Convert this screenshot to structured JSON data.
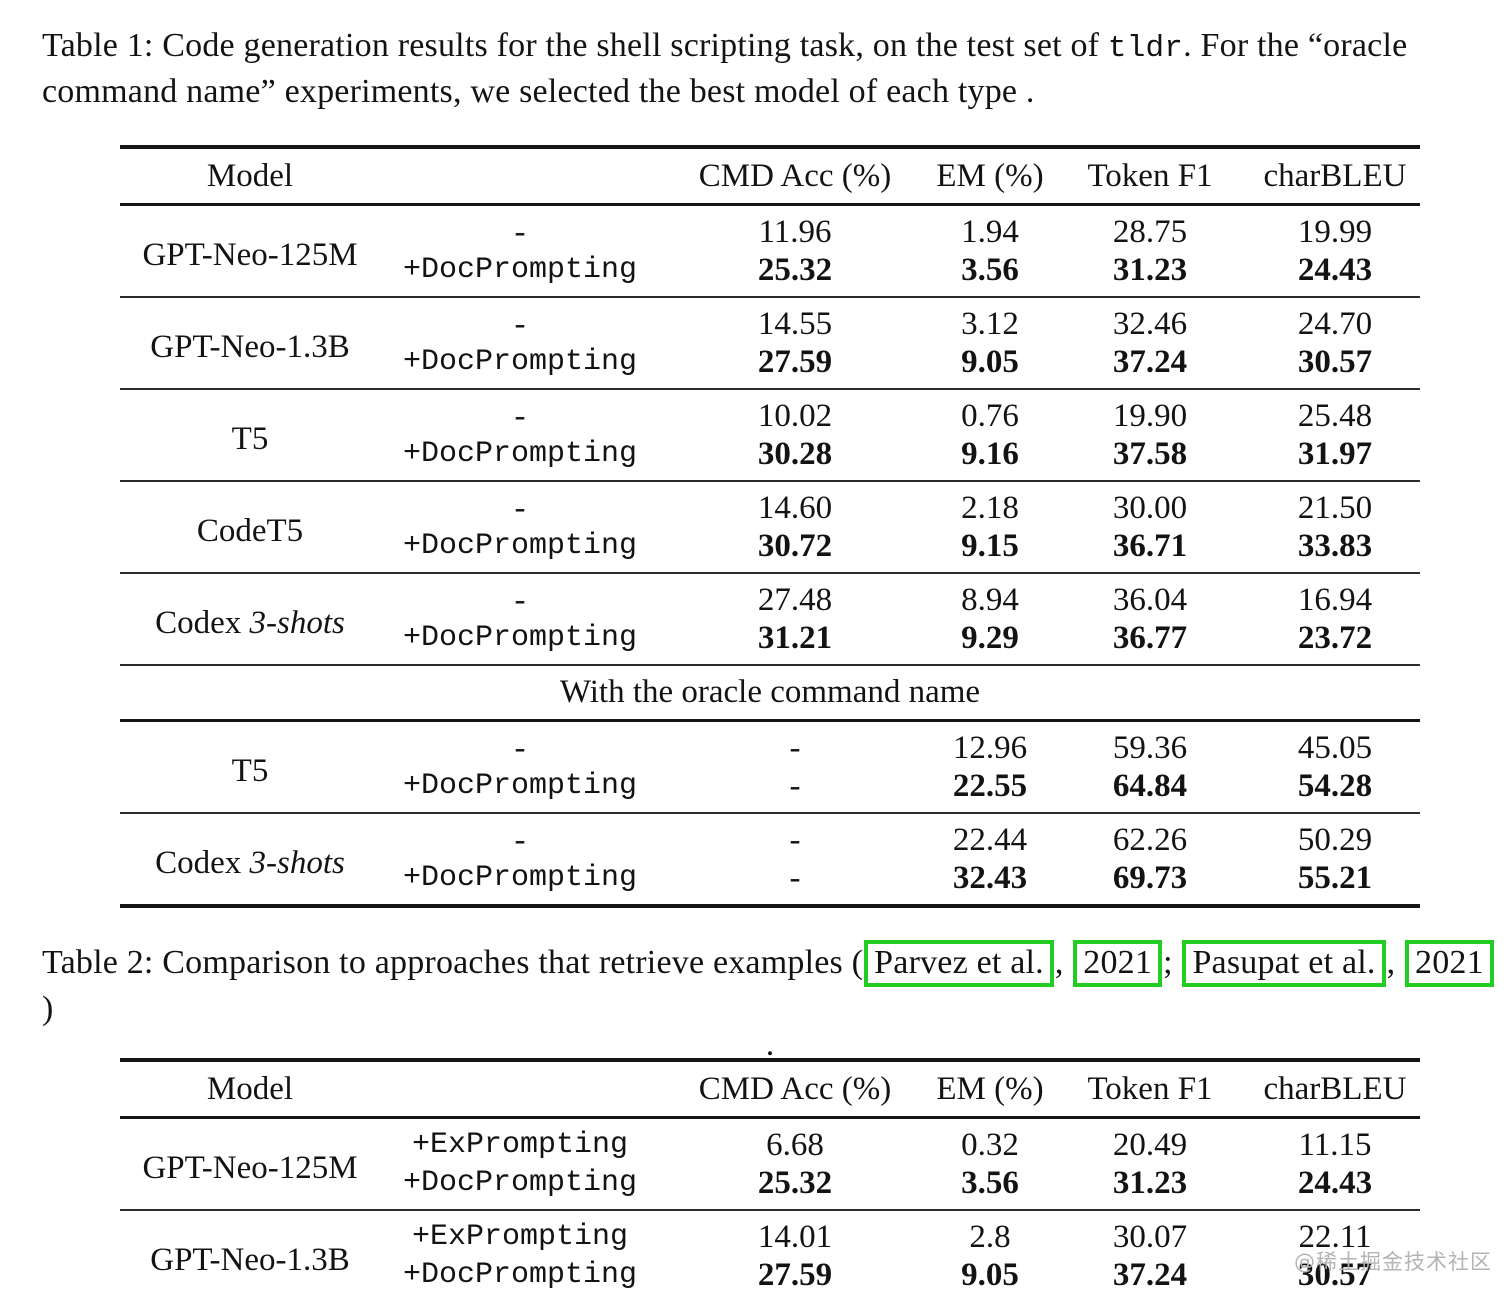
{
  "page": {
    "watermark": "@稀土掘金技术社区"
  },
  "colors": {
    "citation_box": "#22cc22",
    "text": "#131313",
    "watermark": "#b4b4b4"
  },
  "caption1": {
    "prefix": "Table 1: Code generation results for the shell scripting task, on the test set of ",
    "code": "tldr",
    "suffix": ". For the “oracle command name” experiments, we selected the best model of each type ."
  },
  "caption2": {
    "prefix": "Table 2: Comparison to approaches that retrieve examples (",
    "citations": [
      "Parvez et al.",
      "2021",
      "Pasupat et al.",
      "2021"
    ],
    "separators": [
      ", ",
      "; ",
      ", "
    ],
    "suffix": ")",
    "trailing_period": "."
  },
  "table1": {
    "columns": [
      "Model",
      "",
      "CMD Acc (%)",
      "EM (%)",
      "Token F1",
      "charBLEU"
    ],
    "sections": [
      {
        "groups": [
          {
            "model": "GPT-Neo-125M",
            "model_italic": "",
            "rows": [
              {
                "variant": "-",
                "variant_mono": false,
                "bold": false,
                "values": [
                  "11.96",
                  "1.94",
                  "28.75",
                  "19.99"
                ]
              },
              {
                "variant": "+DocPrompting",
                "variant_mono": true,
                "bold": true,
                "values": [
                  "25.32",
                  "3.56",
                  "31.23",
                  "24.43"
                ]
              }
            ]
          },
          {
            "model": "GPT-Neo-1.3B",
            "model_italic": "",
            "rows": [
              {
                "variant": "-",
                "variant_mono": false,
                "bold": false,
                "values": [
                  "14.55",
                  "3.12",
                  "32.46",
                  "24.70"
                ]
              },
              {
                "variant": "+DocPrompting",
                "variant_mono": true,
                "bold": true,
                "values": [
                  "27.59",
                  "9.05",
                  "37.24",
                  "30.57"
                ]
              }
            ]
          },
          {
            "model": "T5",
            "model_italic": "",
            "rows": [
              {
                "variant": "-",
                "variant_mono": false,
                "bold": false,
                "values": [
                  "10.02",
                  "0.76",
                  "19.90",
                  "25.48"
                ]
              },
              {
                "variant": "+DocPrompting",
                "variant_mono": true,
                "bold": true,
                "values": [
                  "30.28",
                  "9.16",
                  "37.58",
                  "31.97"
                ]
              }
            ]
          },
          {
            "model": "CodeT5",
            "model_italic": "",
            "rows": [
              {
                "variant": "-",
                "variant_mono": false,
                "bold": false,
                "values": [
                  "14.60",
                  "2.18",
                  "30.00",
                  "21.50"
                ]
              },
              {
                "variant": "+DocPrompting",
                "variant_mono": true,
                "bold": true,
                "values": [
                  "30.72",
                  "9.15",
                  "36.71",
                  "33.83"
                ]
              }
            ]
          },
          {
            "model": "Codex",
            "model_italic": "3-shots",
            "rows": [
              {
                "variant": "-",
                "variant_mono": false,
                "bold": false,
                "values": [
                  "27.48",
                  "8.94",
                  "36.04",
                  "16.94"
                ]
              },
              {
                "variant": "+DocPrompting",
                "variant_mono": true,
                "bold": true,
                "values": [
                  "31.21",
                  "9.29",
                  "36.77",
                  "23.72"
                ]
              }
            ]
          }
        ]
      },
      {
        "header": "With the oracle command name",
        "groups": [
          {
            "model": "T5",
            "model_italic": "",
            "rows": [
              {
                "variant": "-",
                "variant_mono": false,
                "bold": false,
                "values": [
                  "-",
                  "12.96",
                  "59.36",
                  "45.05"
                ]
              },
              {
                "variant": "+DocPrompting",
                "variant_mono": true,
                "bold": true,
                "values": [
                  "-",
                  "22.55",
                  "64.84",
                  "54.28"
                ]
              }
            ]
          },
          {
            "model": "Codex",
            "model_italic": "3-shots",
            "rows": [
              {
                "variant": "-",
                "variant_mono": false,
                "bold": false,
                "values": [
                  "-",
                  "22.44",
                  "62.26",
                  "50.29"
                ]
              },
              {
                "variant": "+DocPrompting",
                "variant_mono": true,
                "bold": true,
                "values": [
                  "-",
                  "32.43",
                  "69.73",
                  "55.21"
                ]
              }
            ]
          }
        ]
      }
    ]
  },
  "table2": {
    "columns": [
      "Model",
      "",
      "CMD Acc (%)",
      "EM (%)",
      "Token F1",
      "charBLEU"
    ],
    "sections": [
      {
        "groups": [
          {
            "model": "GPT-Neo-125M",
            "model_italic": "",
            "rows": [
              {
                "variant": "+ExPrompting",
                "variant_mono": true,
                "bold": false,
                "values": [
                  "6.68",
                  "0.32",
                  "20.49",
                  "11.15"
                ]
              },
              {
                "variant": "+DocPrompting",
                "variant_mono": true,
                "bold": true,
                "values": [
                  "25.32",
                  "3.56",
                  "31.23",
                  "24.43"
                ]
              }
            ]
          },
          {
            "model": "GPT-Neo-1.3B",
            "model_italic": "",
            "rows": [
              {
                "variant": "+ExPrompting",
                "variant_mono": true,
                "bold": false,
                "values": [
                  "14.01",
                  "2.8",
                  "30.07",
                  "22.11"
                ]
              },
              {
                "variant": "+DocPrompting",
                "variant_mono": true,
                "bold": true,
                "values": [
                  "27.59",
                  "9.05",
                  "37.24",
                  "30.57"
                ]
              }
            ]
          }
        ]
      }
    ]
  }
}
